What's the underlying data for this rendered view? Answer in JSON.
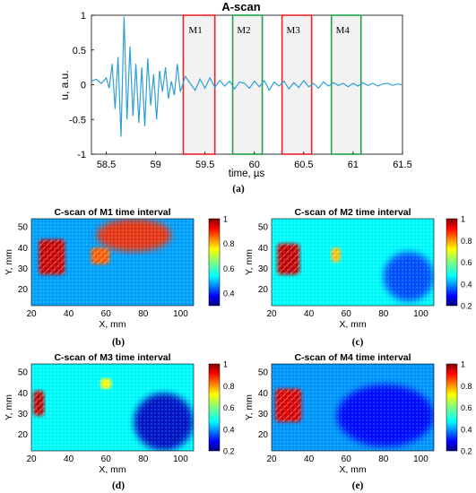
{
  "figure": {
    "labels": [
      "(a)",
      "(b)",
      "(c)",
      "(d)",
      "(e)"
    ]
  },
  "chart_data": [
    {
      "type": "line",
      "title": "A-scan",
      "xlabel": "time, µs",
      "ylabel": "u, a.u.",
      "xlim": [
        58.35,
        61.5
      ],
      "ylim": [
        -1,
        1
      ],
      "xticks": [
        "58.5",
        "59",
        "59.5",
        "60",
        "60.5",
        "61",
        "61.5"
      ],
      "yticks": [
        "1",
        "0.5",
        "0",
        "-0.5",
        "-1"
      ],
      "line_color": "#2f9fd6",
      "series": [
        {
          "x": [
            58.35,
            58.4,
            58.45,
            58.5,
            58.53,
            58.56,
            58.59,
            58.62,
            58.65,
            58.68,
            58.71,
            58.74,
            58.77,
            58.8,
            58.83,
            58.86,
            58.89,
            58.92,
            58.95,
            58.98,
            59.01,
            59.04,
            59.07,
            59.1,
            59.13,
            59.16,
            59.19,
            59.22,
            59.25,
            59.3,
            59.35,
            59.4,
            59.45,
            59.5,
            59.55,
            59.6,
            59.65,
            59.7,
            59.75,
            59.8,
            59.85,
            59.9,
            59.95,
            60.0,
            60.05,
            60.1,
            60.15,
            60.2,
            60.25,
            60.3,
            60.35,
            60.4,
            60.45,
            60.5,
            60.55,
            60.6,
            60.65,
            60.7,
            60.75,
            60.8,
            60.85,
            60.9,
            60.95,
            61.0,
            61.05,
            61.1,
            61.15,
            61.2,
            61.25,
            61.3,
            61.35,
            61.4,
            61.45,
            61.5
          ],
          "y": [
            0.05,
            0.08,
            0.02,
            0.1,
            -0.05,
            0.3,
            -0.35,
            0.4,
            -0.75,
            0.98,
            -0.5,
            0.55,
            -0.45,
            0.3,
            -0.55,
            0.25,
            -0.6,
            0.38,
            -0.3,
            0.15,
            -0.5,
            0.2,
            -0.1,
            0.25,
            -0.2,
            0.05,
            -0.15,
            0.3,
            -0.1,
            0.12,
            0.02,
            -0.08,
            0.08,
            -0.05,
            0.1,
            -0.04,
            0.06,
            -0.02,
            0.05,
            -0.06,
            0.04,
            0.02,
            -0.05,
            0.05,
            -0.03,
            0.06,
            -0.08,
            0.04,
            -0.02,
            0.05,
            -0.06,
            0.03,
            -0.04,
            0.06,
            -0.03,
            0.02,
            -0.05,
            0.04,
            -0.02,
            0.03,
            -0.01,
            0.02,
            -0.03,
            0.02,
            -0.02,
            0.03,
            -0.01,
            0.02,
            -0.02,
            0.01,
            0.02,
            -0.01,
            0.01,
            0.0
          ]
        }
      ],
      "annotations": [
        {
          "label": "M1",
          "x_range": [
            59.28,
            59.6
          ],
          "color": "#e8262a"
        },
        {
          "label": "M2",
          "x_range": [
            59.78,
            60.08
          ],
          "color": "#21a34a"
        },
        {
          "label": "M3",
          "x_range": [
            60.28,
            60.58
          ],
          "color": "#e8262a"
        },
        {
          "label": "M4",
          "x_range": [
            60.78,
            61.08
          ],
          "color": "#21a34a"
        }
      ]
    },
    {
      "type": "heatmap",
      "title": "C-scan of M1 time interval",
      "xlabel": "X, mm",
      "ylabel": "Y, mm",
      "xlim": [
        20,
        107
      ],
      "ylim": [
        12,
        54
      ],
      "xticks": [
        "20",
        "40",
        "60",
        "80",
        "100"
      ],
      "yticks": [
        "50",
        "40",
        "30",
        "20"
      ],
      "colorbar": {
        "range": [
          0.3,
          1
        ],
        "ticks": [
          "1",
          "0.8",
          "0.6",
          "0.4"
        ]
      },
      "features": [
        {
          "kind": "background",
          "value": 0.5
        },
        {
          "kind": "defect",
          "label": "rectangular high-amplitude region",
          "x": [
            24,
            38
          ],
          "y": [
            27,
            44
          ],
          "value": 0.95
        },
        {
          "kind": "defect",
          "label": "diagonal hatched region",
          "x": [
            52,
            62
          ],
          "y": [
            32,
            40
          ],
          "value": 0.85
        },
        {
          "kind": "region",
          "x": [
            55,
            95
          ],
          "y": [
            38,
            54
          ],
          "value": 0.88
        }
      ]
    },
    {
      "type": "heatmap",
      "title": "C-scan of M2 time interval",
      "xlabel": "X, mm",
      "ylabel": "Y, mm",
      "xlim": [
        20,
        107
      ],
      "ylim": [
        12,
        54
      ],
      "xticks": [
        "20",
        "40",
        "60",
        "80",
        "100"
      ],
      "yticks": [
        "50",
        "40",
        "30",
        "20"
      ],
      "colorbar": {
        "range": [
          0.2,
          1
        ],
        "ticks": [
          "1",
          "0.8",
          "0.6",
          "0.4",
          "0.2"
        ]
      },
      "features": [
        {
          "kind": "background",
          "value": 0.5
        },
        {
          "kind": "defect",
          "x": [
            23,
            35
          ],
          "y": [
            27,
            42
          ],
          "value": 0.95
        },
        {
          "kind": "defect",
          "x": [
            52,
            57
          ],
          "y": [
            33,
            40
          ],
          "value": 0.75
        },
        {
          "kind": "region",
          "x": [
            80,
            107
          ],
          "y": [
            14,
            38
          ],
          "value": 0.35
        }
      ]
    },
    {
      "type": "heatmap",
      "title": "C-scan of M3 time interval",
      "xlabel": "X, mm",
      "ylabel": "Y, mm",
      "xlim": [
        20,
        107
      ],
      "ylim": [
        12,
        54
      ],
      "xticks": [
        "20",
        "40",
        "60",
        "80",
        "100"
      ],
      "yticks": [
        "50",
        "40",
        "30",
        "20"
      ],
      "colorbar": {
        "range": [
          0.2,
          1
        ],
        "ticks": [
          "1",
          "0.8",
          "0.6",
          "0.4",
          "0.2"
        ]
      },
      "features": [
        {
          "kind": "background",
          "value": 0.5
        },
        {
          "kind": "defect",
          "x": [
            21,
            27
          ],
          "y": [
            29,
            41
          ],
          "value": 0.95
        },
        {
          "kind": "defect",
          "x": [
            57,
            63
          ],
          "y": [
            42,
            47
          ],
          "value": 0.7
        },
        {
          "kind": "region",
          "x": [
            75,
            107
          ],
          "y": [
            12,
            40
          ],
          "value": 0.25
        }
      ]
    },
    {
      "type": "heatmap",
      "title": "C-scan of M4 time interval",
      "xlabel": "X, mm",
      "ylabel": "Y, mm",
      "xlim": [
        20,
        107
      ],
      "ylim": [
        12,
        54
      ],
      "xticks": [
        "20",
        "40",
        "60",
        "80",
        "100"
      ],
      "yticks": [
        "50",
        "40",
        "30",
        "20"
      ],
      "colorbar": {
        "range": [
          0.2,
          1
        ],
        "ticks": [
          "1",
          "0.8",
          "0.6",
          "0.4",
          "0.2"
        ]
      },
      "features": [
        {
          "kind": "background",
          "value": 0.42
        },
        {
          "kind": "defect",
          "x": [
            22,
            36
          ],
          "y": [
            26,
            42
          ],
          "value": 0.93
        },
        {
          "kind": "region",
          "x": [
            55,
            107
          ],
          "y": [
            14,
            44
          ],
          "value": 0.3
        }
      ]
    }
  ]
}
